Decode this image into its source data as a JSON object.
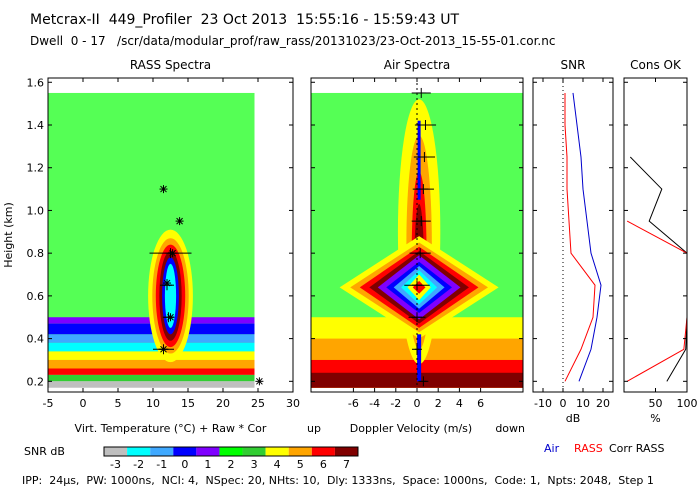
{
  "header": {
    "line1": "Metcrax-II  449_Profiler  23 Oct 2013  15:55:16 - 15:59:43 UT",
    "line2": "Dwell  0 - 17   /scr/data/modular_prof/raw_rass/20131023/23-Oct-2013_15-55-01.cor.nc"
  },
  "footer": "IPP:  24μs,  PW: 1000ns,  NCI: 4,  NSpec: 20, NHts: 10,  Dly: 1333ns,  Space: 1000ns,  Code: 1,  Npts: 2048,  Step 1",
  "colors": {
    "scale": [
      "#bfbfbf",
      "#00ffff",
      "#3fa9ff",
      "#0000ff",
      "#7f00ff",
      "#00ff00",
      "#32cd32",
      "#ffff00",
      "#ffa500",
      "#ff0000",
      "#800000",
      "#400040"
    ],
    "green": "#55ff55",
    "air": "#0000cc",
    "rass": "#ff0000",
    "corr": "#000000"
  },
  "chart_data": [
    {
      "type": "heatmap",
      "panel": "rass",
      "title": "RASS Spectra",
      "xlabel": "Virt. Temperature (°C)   + Raw   * Cor",
      "ylabel": "Height (km)",
      "xlim": [
        -5,
        30
      ],
      "ylim": [
        0.15,
        1.62
      ],
      "xticks": [
        -5,
        0,
        5,
        10,
        15,
        20,
        25,
        30
      ],
      "yticks": [
        0.2,
        0.4,
        0.6,
        0.8,
        1.0,
        1.2,
        1.4,
        1.6
      ],
      "raw": [
        {
          "x": 11.5,
          "y": 0.35,
          "xerr": 1.5
        },
        {
          "x": 12.2,
          "y": 0.5,
          "xerr": 0.8
        },
        {
          "x": 12.0,
          "y": 0.65,
          "xerr": 1.0
        },
        {
          "x": 12.5,
          "y": 0.8,
          "xerr": 3.0
        }
      ],
      "cor": [
        {
          "x": 11.5,
          "y": 0.35
        },
        {
          "x": 12.5,
          "y": 0.5
        },
        {
          "x": 12.0,
          "y": 0.66
        },
        {
          "x": 12.8,
          "y": 0.8
        },
        {
          "x": 13.8,
          "y": 0.95
        },
        {
          "x": 11.5,
          "y": 1.1
        },
        {
          "x": 25.2,
          "y": 0.2
        }
      ]
    },
    {
      "type": "heatmap",
      "panel": "air",
      "title": "Air Spectra",
      "xlabel": "Doppler Velocity (m/s)",
      "left_label": "up",
      "right_label": "down",
      "xlim": [
        -10,
        10
      ],
      "ylim": [
        0.15,
        1.62
      ],
      "xticks": [
        -6,
        -4,
        -2,
        0,
        2,
        4,
        6
      ],
      "moments": [
        {
          "x": 0.6,
          "y": 0.2,
          "xerr": 0.3
        },
        {
          "x": 0.0,
          "y": 0.35,
          "xerr": 0.2
        },
        {
          "x": 0.0,
          "y": 0.5,
          "xerr": 0.8
        },
        {
          "x": 0.0,
          "y": 0.65,
          "xerr": 1.2
        },
        {
          "x": 0.3,
          "y": 0.8,
          "xerr": 1.0
        },
        {
          "x": 0.4,
          "y": 0.95,
          "xerr": 0.9
        },
        {
          "x": 0.6,
          "y": 1.1,
          "xerr": 1.0
        },
        {
          "x": 0.7,
          "y": 1.25,
          "xerr": 1.0
        },
        {
          "x": 0.8,
          "y": 1.4,
          "xerr": 1.0
        },
        {
          "x": 0.4,
          "y": 1.55,
          "xerr": 0.9
        }
      ]
    },
    {
      "type": "line",
      "panel": "snr",
      "title": "SNR",
      "xlabel": "dB",
      "xlim": [
        -15,
        25
      ],
      "xticks": [
        -10,
        0,
        10,
        20
      ],
      "xticklabels": [
        "-10",
        "0",
        "10",
        "20"
      ],
      "series": [
        {
          "name": "Air",
          "y": [
            0.2,
            0.35,
            0.5,
            0.65,
            0.8,
            0.95,
            1.1,
            1.25,
            1.4,
            1.55
          ],
          "values": [
            8,
            14,
            17,
            19,
            14,
            12,
            10,
            9,
            7,
            5
          ]
        },
        {
          "name": "RASS",
          "y": [
            0.2,
            0.35,
            0.5,
            0.65,
            0.8,
            0.95,
            1.1,
            1.25,
            1.4,
            1.55
          ],
          "values": [
            1,
            9,
            15,
            16,
            4,
            3,
            2,
            2,
            1,
            1
          ]
        }
      ]
    },
    {
      "type": "line",
      "panel": "cons",
      "title": "Cons OK",
      "xlabel": "%",
      "xlim": [
        0,
        100
      ],
      "xticks": [
        50,
        100
      ],
      "series": [
        {
          "name": "Corr",
          "y": [
            0.2,
            0.35,
            0.5,
            0.65,
            0.8,
            0.95,
            1.1,
            1.25
          ],
          "values": [
            68,
            98,
            100,
            100,
            100,
            40,
            60,
            10
          ]
        },
        {
          "name": "RASS",
          "y": [
            0.2,
            0.35,
            0.5,
            0.65,
            0.8,
            0.95
          ],
          "values": [
            5,
            95,
            100,
            100,
            100,
            5
          ]
        }
      ]
    }
  ],
  "colorbar": {
    "label": "SNR dB",
    "ticks": [
      "-3",
      "-2",
      "-1",
      "0",
      "1",
      "2",
      "3",
      "4",
      "5",
      "6",
      "7"
    ]
  },
  "legend": {
    "air": "Air",
    "rass": "RASS",
    "corr": "Corr RASS"
  }
}
